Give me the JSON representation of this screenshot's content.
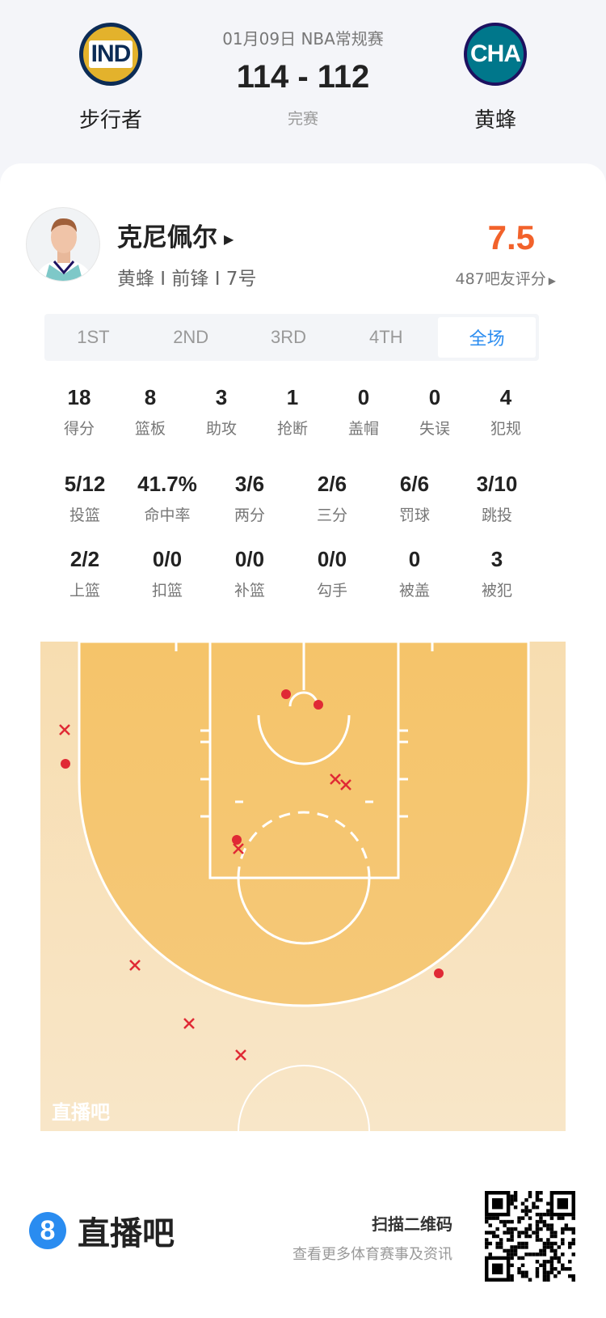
{
  "header": {
    "home": {
      "abbr": "IND",
      "name": "步行者",
      "colors": [
        "#e3b22c",
        "#0c2c56"
      ]
    },
    "away": {
      "abbr": "CHA",
      "name": "黄蜂",
      "colors": [
        "#00778b",
        "#1d1160"
      ]
    },
    "date_league": "01月09日 NBA常规赛",
    "score": "114 - 112",
    "status": "完赛"
  },
  "player": {
    "name": "克尼佩尔",
    "info": "黄蜂 I 前锋 I 7号",
    "rating": "7.5",
    "rating_count": "487吧友评分",
    "rating_color": "#f2622b"
  },
  "tabs": [
    {
      "label": "1ST"
    },
    {
      "label": "2ND"
    },
    {
      "label": "3RD"
    },
    {
      "label": "4TH"
    },
    {
      "label": "全场",
      "active": true
    }
  ],
  "stats_row1": [
    {
      "v": "18",
      "l": "得分"
    },
    {
      "v": "8",
      "l": "篮板"
    },
    {
      "v": "3",
      "l": "助攻"
    },
    {
      "v": "1",
      "l": "抢断"
    },
    {
      "v": "0",
      "l": "盖帽"
    },
    {
      "v": "0",
      "l": "失误"
    },
    {
      "v": "4",
      "l": "犯规"
    }
  ],
  "stats_row2": [
    {
      "v": "5/12",
      "l": "投篮"
    },
    {
      "v": "41.7%",
      "l": "命中率"
    },
    {
      "v": "3/6",
      "l": "两分"
    },
    {
      "v": "2/6",
      "l": "三分"
    },
    {
      "v": "6/6",
      "l": "罚球"
    },
    {
      "v": "3/10",
      "l": "跳投"
    }
  ],
  "stats_row3": [
    {
      "v": "2/2",
      "l": "上篮"
    },
    {
      "v": "0/0",
      "l": "扣篮"
    },
    {
      "v": "0/0",
      "l": "补篮"
    },
    {
      "v": "0/0",
      "l": "勾手"
    },
    {
      "v": "0",
      "l": "被盖"
    },
    {
      "v": "3",
      "l": "被犯"
    }
  ],
  "shot_chart": {
    "watermark": "直播吧",
    "legend": {
      "made": "dot",
      "missed": "x"
    },
    "shot_color": "#e02a35",
    "shots": [
      {
        "made": true,
        "pos": "under basket left"
      },
      {
        "made": true,
        "pos": "under basket right"
      },
      {
        "made": true,
        "pos": "left corner three"
      },
      {
        "made": true,
        "pos": "left elbow"
      },
      {
        "made": true,
        "pos": "right wing three"
      },
      {
        "made": false,
        "pos": "left corner three"
      },
      {
        "made": false,
        "pos": "right lane"
      },
      {
        "made": false,
        "pos": "right lane"
      },
      {
        "made": false,
        "pos": "left elbow"
      },
      {
        "made": false,
        "pos": "left wing three"
      },
      {
        "made": false,
        "pos": "left wing three deep"
      },
      {
        "made": false,
        "pos": "top of key three deep"
      }
    ]
  },
  "footer": {
    "brand": "直播吧",
    "brand_icon": "8",
    "scan_title": "扫描二维码",
    "scan_sub": "查看更多体育赛事及资讯"
  }
}
